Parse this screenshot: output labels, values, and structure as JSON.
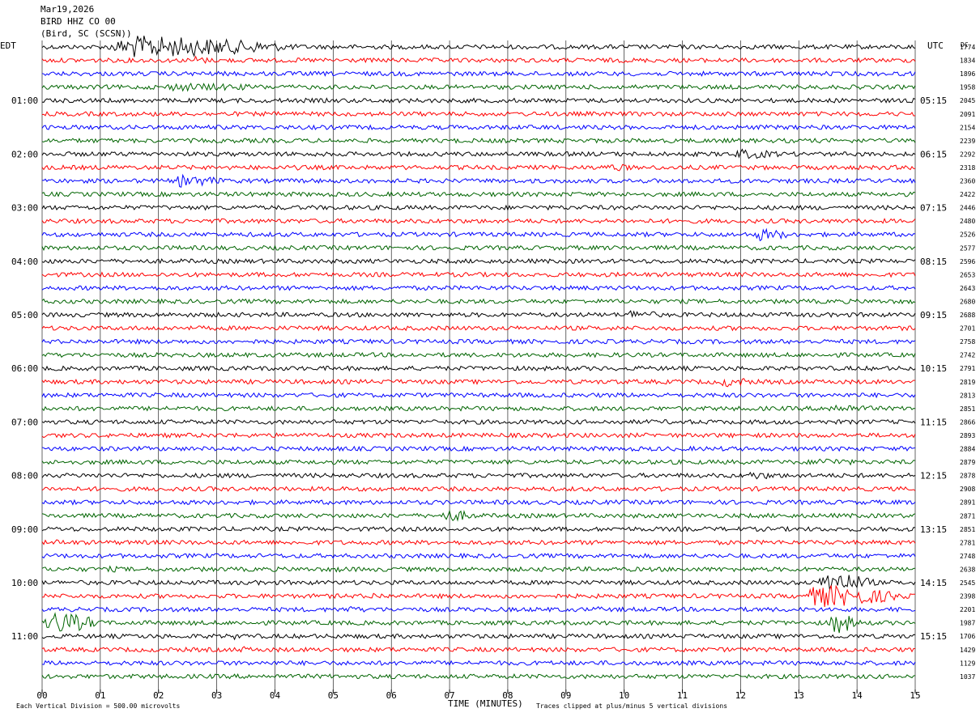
{
  "header": {
    "date": "Mar19,2026",
    "station": "BIRD HHZ CO 00",
    "location": "(Bird, SC (SCSN))",
    "left_timezone": "EDT",
    "right_timezone": "UTC",
    "dc_label": "DC"
  },
  "footer": {
    "scale_note": "Each Vertical Division = 500.00 microvolts",
    "clip_note": "Traces clipped at plus/minus 5 vertical divisions"
  },
  "colors": {
    "trace_cycle": [
      "#000000",
      "#ff0000",
      "#0000ff",
      "#006400"
    ],
    "grid": "#000000",
    "background": "#ffffff"
  },
  "chart_data": {
    "type": "line",
    "title": "BIRD HHZ CO 00",
    "xlabel": "TIME (MINUTES)",
    "ylabel": "",
    "xlim": [
      0,
      15
    ],
    "x_ticks": [
      "00",
      "01",
      "02",
      "03",
      "04",
      "05",
      "06",
      "07",
      "08",
      "09",
      "10",
      "11",
      "12",
      "13",
      "14",
      "15"
    ],
    "trace_count": 48,
    "minutes_per_trace": 15,
    "left_hour_labels": [
      "01:00",
      "02:00",
      "03:00",
      "04:00",
      "05:00",
      "06:00",
      "07:00",
      "08:00",
      "09:00",
      "10:00",
      "11:00"
    ],
    "right_hour_labels": [
      "05:15",
      "06:15",
      "07:15",
      "08:15",
      "09:15",
      "10:15",
      "11:15",
      "12:15",
      "13:15",
      "14:15",
      "15:15"
    ],
    "dc_offsets": [
      "1774",
      "1834",
      "1896",
      "1958",
      "2045",
      "2091",
      "2154",
      "2239",
      "2292",
      "2318",
      "2360",
      "2422",
      "2446",
      "2480",
      "2526",
      "2577",
      "2596",
      "2653",
      "2643",
      "2680",
      "2688",
      "2701",
      "2758",
      "2742",
      "2791",
      "2819",
      "2813",
      "2851",
      "2866",
      "2893",
      "2884",
      "2879",
      "2878",
      "2908",
      "2891",
      "2871",
      "2851",
      "2781",
      "2748",
      "2638",
      "2545",
      "2398",
      "2201",
      "1987",
      "1706",
      "1429",
      "1129",
      "1037"
    ],
    "events": [
      {
        "trace": 0,
        "start_min": 1.0,
        "end_min": 4.6,
        "amplitude": 5
      },
      {
        "trace": 1,
        "start_min": 2.6,
        "end_min": 2.9,
        "amplitude": 2.5
      },
      {
        "trace": 3,
        "start_min": 1.8,
        "end_min": 4.8,
        "amplitude": 1.8
      },
      {
        "trace": 8,
        "start_min": 11.8,
        "end_min": 13.0,
        "amplitude": 2.2
      },
      {
        "trace": 9,
        "start_min": 9.6,
        "end_min": 10.4,
        "amplitude": 1.8
      },
      {
        "trace": 9,
        "start_min": 4.2,
        "end_min": 5.3,
        "amplitude": 1.1
      },
      {
        "trace": 10,
        "start_min": 2.2,
        "end_min": 3.3,
        "amplitude": 2.8
      },
      {
        "trace": 14,
        "start_min": 12.2,
        "end_min": 13.0,
        "amplitude": 2.8
      },
      {
        "trace": 20,
        "start_min": 10.0,
        "end_min": 10.8,
        "amplitude": 2.2
      },
      {
        "trace": 22,
        "start_min": 11.6,
        "end_min": 11.9,
        "amplitude": 0.9
      },
      {
        "trace": 22,
        "start_min": 7.0,
        "end_min": 7.3,
        "amplitude": 0.9
      },
      {
        "trace": 25,
        "start_min": 11.6,
        "end_min": 12.4,
        "amplitude": 2.3
      },
      {
        "trace": 27,
        "start_min": 13.3,
        "end_min": 14.7,
        "amplitude": 2.0
      },
      {
        "trace": 31,
        "start_min": 13.2,
        "end_min": 14.2,
        "amplitude": 2.0
      },
      {
        "trace": 32,
        "start_min": 12.0,
        "end_min": 13.0,
        "amplitude": 1.8
      },
      {
        "trace": 35,
        "start_min": 6.8,
        "end_min": 7.6,
        "amplitude": 2.8
      },
      {
        "trace": 37,
        "start_min": 0.1,
        "end_min": 1.0,
        "amplitude": 1.3
      },
      {
        "trace": 37,
        "start_min": 3.6,
        "end_min": 4.4,
        "amplitude": 1.0
      },
      {
        "trace": 39,
        "start_min": 1.0,
        "end_min": 2.0,
        "amplitude": 1.3
      },
      {
        "trace": 39,
        "start_min": 4.8,
        "end_min": 6.2,
        "amplitude": 1.2
      },
      {
        "trace": 40,
        "start_min": 13.3,
        "end_min": 14.4,
        "amplitude": 5
      },
      {
        "trace": 41,
        "start_min": 5.5,
        "end_min": 6.2,
        "amplitude": 1.6
      },
      {
        "trace": 41,
        "start_min": 13.0,
        "end_min": 15.0,
        "amplitude": 5
      },
      {
        "trace": 42,
        "start_min": 5.0,
        "end_min": 6.0,
        "amplitude": 1.5
      },
      {
        "trace": 42,
        "start_min": 9.4,
        "end_min": 10.0,
        "amplitude": 1.3
      },
      {
        "trace": 43,
        "start_min": 0.0,
        "end_min": 1.1,
        "amplitude": 5
      },
      {
        "trace": 43,
        "start_min": 13.5,
        "end_min": 14.1,
        "amplitude": 5
      },
      {
        "trace": 44,
        "start_min": 3.2,
        "end_min": 3.8,
        "amplitude": 1.4
      },
      {
        "trace": 44,
        "start_min": 12.0,
        "end_min": 12.7,
        "amplitude": 1.0
      },
      {
        "trace": 45,
        "start_min": 3.3,
        "end_min": 3.8,
        "amplitude": 1.5
      },
      {
        "trace": 45,
        "start_min": 5.9,
        "end_min": 6.2,
        "amplitude": 1.3
      }
    ]
  }
}
